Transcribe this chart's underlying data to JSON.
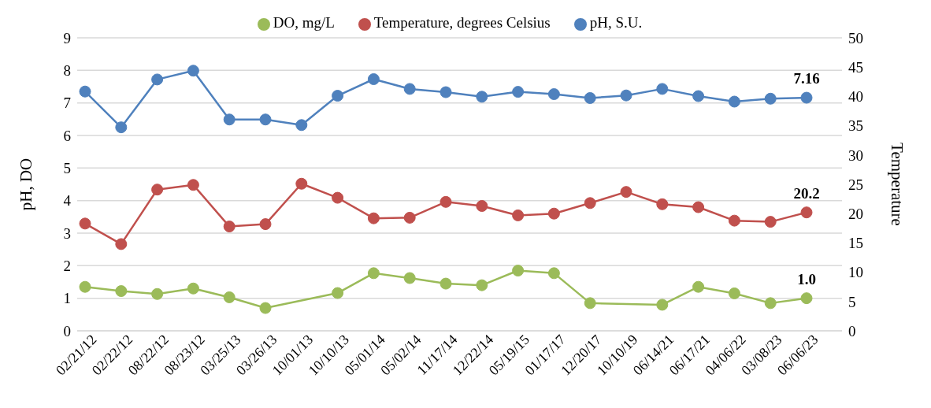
{
  "chart_data": {
    "type": "line",
    "categories": [
      "02/21/12",
      "02/22/12",
      "08/22/12",
      "08/23/12",
      "03/25/13",
      "03/26/13",
      "10/01/13",
      "10/10/13",
      "05/01/14",
      "05/02/14",
      "11/17/14",
      "12/22/14",
      "05/19/15",
      "01/17/17",
      "12/20/17",
      "10/10/19",
      "06/14/21",
      "06/17/21",
      "04/06/22",
      "03/08/23",
      "06/06/23"
    ],
    "series": [
      {
        "name": "pH, S.U.",
        "color": "#4f81bd",
        "values": [
          7.35,
          6.25,
          7.72,
          7.99,
          6.49,
          6.49,
          6.32,
          7.22,
          7.73,
          7.43,
          7.33,
          7.19,
          7.34,
          7.27,
          7.15,
          7.23,
          7.43,
          7.21,
          7.04,
          7.13,
          7.16
        ],
        "value_labels": [
          null,
          null,
          null,
          null,
          null,
          null,
          null,
          null,
          null,
          null,
          null,
          null,
          null,
          null,
          null,
          null,
          null,
          null,
          null,
          null,
          "7.16"
        ]
      },
      {
        "name": "DO, mg/L",
        "color": "#9bbb59",
        "values": [
          1.35,
          1.22,
          1.13,
          1.3,
          1.03,
          0.7,
          null,
          1.16,
          1.77,
          1.62,
          1.45,
          1.4,
          1.85,
          1.77,
          0.85,
          null,
          0.8,
          1.35,
          1.15,
          0.85,
          1.0
        ],
        "value_labels": [
          null,
          null,
          null,
          null,
          null,
          null,
          null,
          null,
          null,
          null,
          null,
          null,
          null,
          null,
          null,
          null,
          null,
          null,
          null,
          null,
          "1.0"
        ]
      },
      {
        "name": "Temperature, degrees Celsius",
        "color": "#c0504d",
        "axis": "y2",
        "values": [
          18.3,
          14.8,
          24.1,
          24.9,
          17.8,
          18.2,
          25.1,
          22.7,
          19.2,
          19.3,
          22.0,
          21.3,
          19.7,
          20.0,
          21.8,
          23.7,
          21.6,
          21.1,
          18.8,
          18.6,
          20.2
        ],
        "value_labels": [
          null,
          null,
          null,
          null,
          null,
          null,
          null,
          null,
          null,
          null,
          null,
          null,
          null,
          null,
          null,
          null,
          null,
          null,
          null,
          null,
          "20.2"
        ]
      }
    ],
    "ylabel": "pH, DO",
    "y2label": "Temperature",
    "ylim": [
      0,
      9
    ],
    "yticks": [
      0,
      1,
      2,
      3,
      4,
      5,
      6,
      7,
      8,
      9
    ],
    "y2lim": [
      0,
      50
    ],
    "y2ticks": [
      0,
      5,
      10,
      15,
      20,
      25,
      30,
      35,
      40,
      45,
      50
    ],
    "grid": "y",
    "legend": "top",
    "marker": "circle",
    "line_style": "solid"
  }
}
